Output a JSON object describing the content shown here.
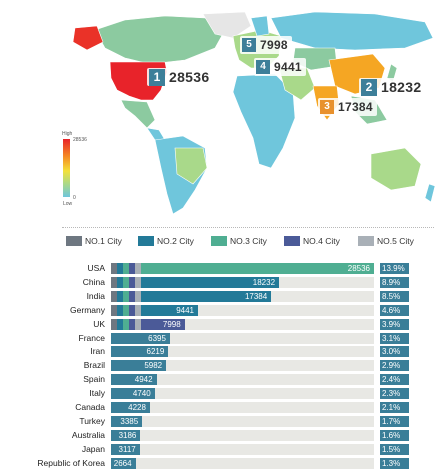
{
  "colors": {
    "rank1": "#6e7781",
    "rank2": "#237a98",
    "rank3": "#4fae92",
    "rank4": "#4b5a98",
    "rank5": "#a9b0b7",
    "total_bar": "#3a7e98",
    "track": "#e8e8e4",
    "pct_box": "#3a7e98"
  },
  "map": {
    "callouts": [
      {
        "rank": "1",
        "value": "28536",
        "color": "#3d7f99"
      },
      {
        "rank": "2",
        "value": "18232",
        "color": "#3d7f99"
      },
      {
        "rank": "3",
        "value": "17384",
        "color": "#e8912d"
      },
      {
        "rank": "4",
        "value": "9441",
        "color": "#3d7f99"
      },
      {
        "rank": "5",
        "value": "7998",
        "color": "#3d7f99"
      }
    ],
    "scale": {
      "high_label": "High",
      "high_value": "28536",
      "low_label": "Low",
      "low_value": "0"
    }
  },
  "legend": [
    {
      "label": "NO.1 City",
      "color": "#6e7781"
    },
    {
      "label": "NO.2 City",
      "color": "#237a98"
    },
    {
      "label": "NO.3 City",
      "color": "#4fae92"
    },
    {
      "label": "NO.4 City",
      "color": "#4b5a98"
    },
    {
      "label": "NO.5 City",
      "color": "#a9b0b7"
    }
  ],
  "chart_data": {
    "type": "bar",
    "orientation": "horizontal",
    "categories": [
      "USA",
      "China",
      "India",
      "Germany",
      "UK",
      "France",
      "Iran",
      "Brazil",
      "Spain",
      "Italy",
      "Canada",
      "Turkey",
      "Australia",
      "Japan",
      "Republic of Korea"
    ],
    "values": [
      28536,
      18232,
      17384,
      9441,
      7998,
      6395,
      6219,
      5982,
      4942,
      4740,
      4228,
      3385,
      3186,
      3117,
      2664
    ],
    "shares": [
      "13.9%",
      "8.9%",
      "8.5%",
      "4.6%",
      "3.9%",
      "3.1%",
      "3.0%",
      "2.9%",
      "2.4%",
      "2.3%",
      "2.1%",
      "1.7%",
      "1.6%",
      "1.5%",
      "1.3%"
    ],
    "highlight_series": {
      "USA": "#4fae92",
      "China": "#237a98",
      "India": "#237a98",
      "Germany": "#237a98",
      "UK": "#4b5a98"
    },
    "xlim": [
      0,
      28536
    ]
  }
}
